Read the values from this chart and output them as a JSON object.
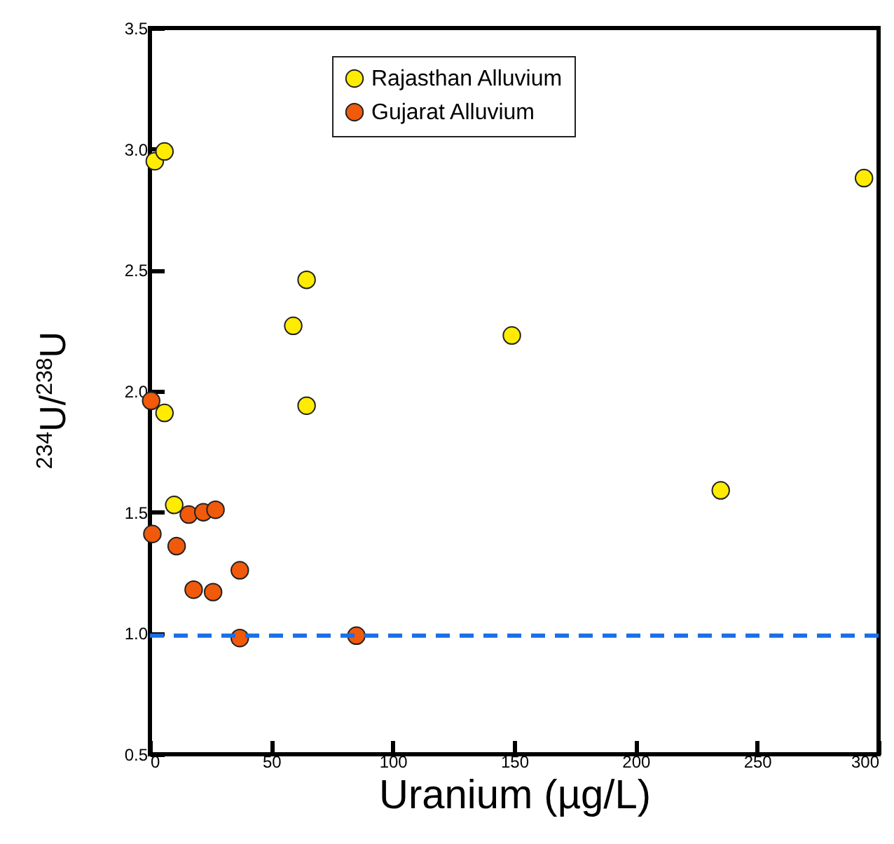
{
  "chart_data": {
    "type": "scatter",
    "xlabel": "Uranium (µg/L)",
    "ylabel": "$^{234}$U/$^{238}$U",
    "xlim": [
      0,
      300
    ],
    "xticks": [
      0,
      50,
      100,
      150,
      200,
      250,
      300
    ],
    "ylim": [
      0.5,
      3.5
    ],
    "yticks": [
      0.5,
      {
        "value": 1,
        "label": "1.0"
      },
      1.5,
      {
        "value": 2,
        "label": "2.0"
      },
      2.5,
      {
        "value": 3,
        "label": "3.0"
      },
      3.5
    ],
    "legend": "top",
    "marker": "circle",
    "grid": false,
    "series": [
      {
        "name": "Rajasthan Alluvium",
        "color": "#ffec00",
        "x": [
          2,
          6,
          64.5,
          59,
          64.5,
          6,
          10,
          149,
          235,
          294
        ],
        "values": [
          2.95,
          2.99,
          2.46,
          2.27,
          1.94,
          1.91,
          1.53,
          2.23,
          1.59,
          2.88
        ]
      },
      {
        "name": "Gujarat Alluvium",
        "color": "#f05a0a",
        "x": [
          0.5,
          1,
          11,
          16,
          22,
          27,
          18,
          26,
          37,
          37,
          85
        ],
        "values": [
          1.96,
          1.41,
          1.36,
          1.49,
          1.5,
          1.51,
          1.18,
          1.17,
          1.26,
          0.98,
          0.99
        ]
      }
    ],
    "ref_lines": [
      {
        "axis": "y",
        "value": 0.99,
        "color": "#1a6fe8",
        "line_style": "dashed"
      }
    ]
  }
}
